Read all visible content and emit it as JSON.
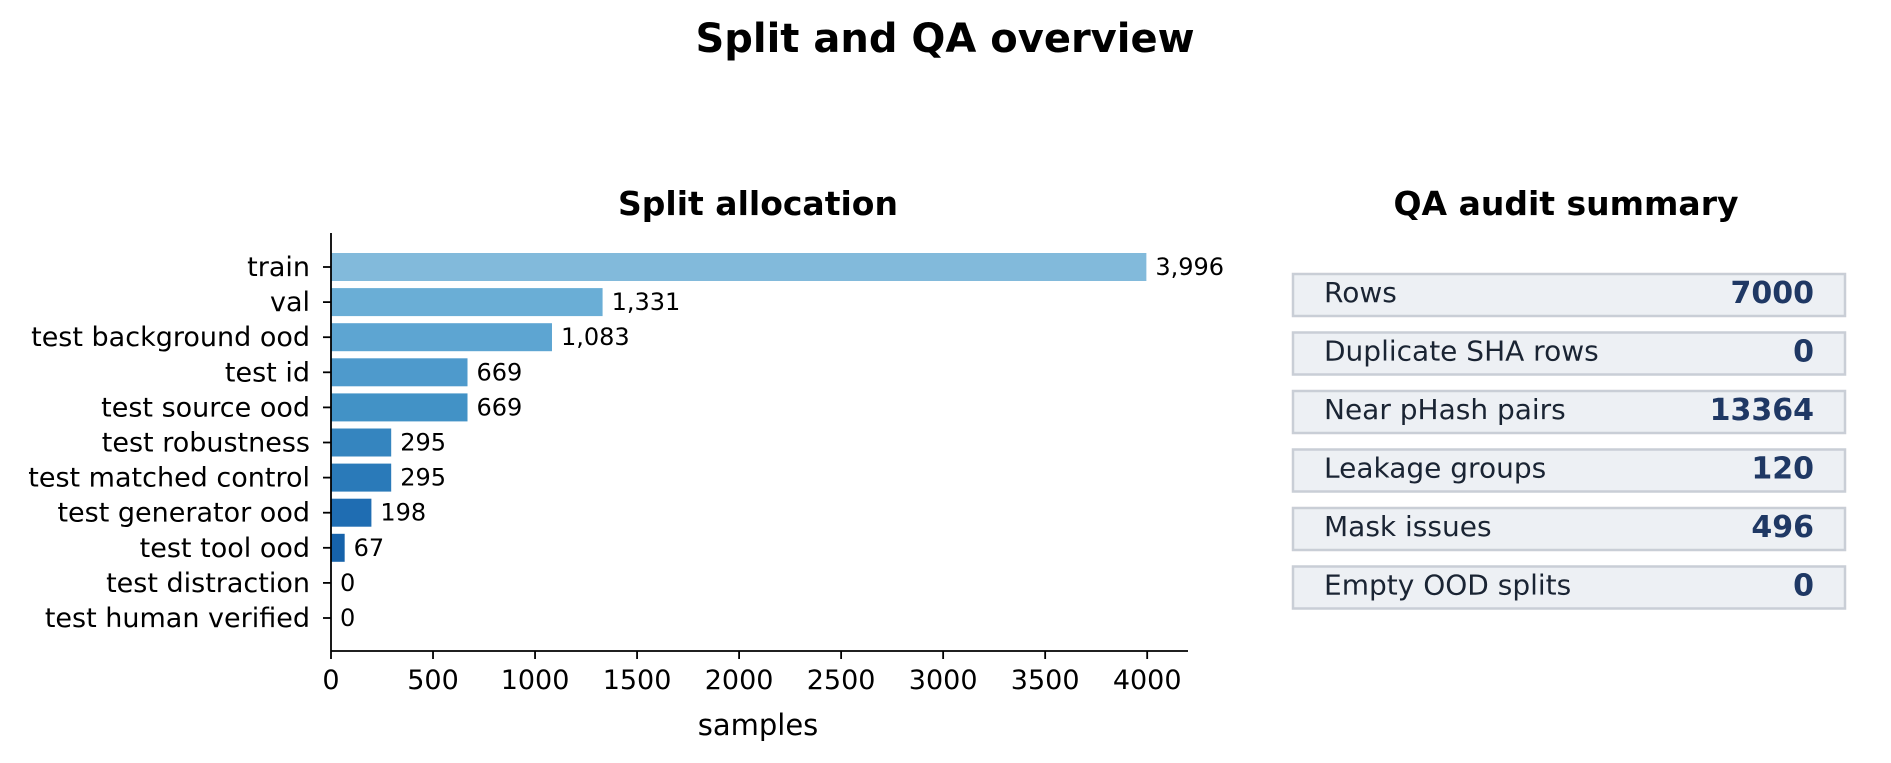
{
  "figure": {
    "title": "Split and QA overview"
  },
  "chart_data": [
    {
      "type": "bar",
      "orientation": "horizontal",
      "title": "Split allocation",
      "xlabel": "samples",
      "ylabel": "",
      "xlim": [
        0,
        4200
      ],
      "x_ticks": [
        0,
        500,
        1000,
        1500,
        2000,
        2500,
        3000,
        3500,
        4000
      ],
      "categories": [
        "train",
        "val",
        "test background ood",
        "test id",
        "test source ood",
        "test robustness",
        "test matched control",
        "test generator ood",
        "test tool ood",
        "test distraction",
        "test human verified"
      ],
      "values": [
        3996,
        1331,
        1083,
        669,
        669,
        295,
        295,
        198,
        67,
        0,
        0
      ],
      "value_labels": [
        "3,996",
        "1,331",
        "1,083",
        "669",
        "669",
        "295",
        "295",
        "198",
        "67",
        "0",
        "0"
      ],
      "bar_colors": [
        "#82badb",
        "#6aaed6",
        "#5da5d2",
        "#4e9acc",
        "#4292c6",
        "#3585bf",
        "#2a7ab9",
        "#1f6db2",
        "#1662aa",
        "#0d57a1",
        "#08519c"
      ],
      "grid": false,
      "legend": "none"
    },
    {
      "type": "table",
      "title": "QA audit summary",
      "rows": [
        {
          "label": "Rows",
          "value": "7000"
        },
        {
          "label": "Duplicate SHA rows",
          "value": "0"
        },
        {
          "label": "Near pHash pairs",
          "value": "13364"
        },
        {
          "label": "Leakage groups",
          "value": "120"
        },
        {
          "label": "Mask issues",
          "value": "496"
        },
        {
          "label": "Empty OOD splits",
          "value": "0"
        }
      ],
      "row_fill": "#edf0f4",
      "row_border": "#c9ced6",
      "label_color": "#1a2433",
      "value_color": "#1f3864"
    }
  ]
}
